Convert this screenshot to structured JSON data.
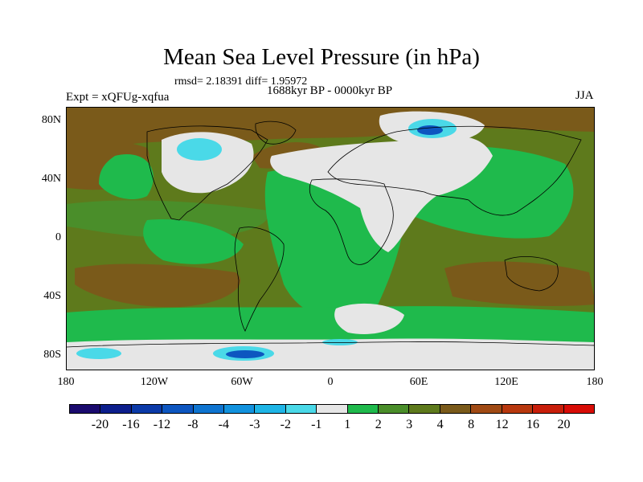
{
  "title": "Mean Sea Level Pressure (in hPa)",
  "stats": "rmsd= 2.18391 diff= 1.95972",
  "period": "1688kyr BP - 0000kyr BP",
  "experiment": "Expt = xQFUg-xqfua",
  "season": "JJA",
  "lat_labels": [
    "80N",
    "40N",
    "0",
    "40S",
    "80S"
  ],
  "lon_labels": [
    "180",
    "120W",
    "60W",
    "0",
    "60E",
    "120E",
    "180"
  ],
  "colorbar": {
    "labels": [
      "-20",
      "-16",
      "-12",
      "-8",
      "-4",
      "-3",
      "-2",
      "-1",
      "1",
      "2",
      "3",
      "4",
      "8",
      "12",
      "16",
      "20"
    ],
    "colors": [
      "#1a0a6e",
      "#0c1e8c",
      "#0b3aa8",
      "#0d56c0",
      "#0e74d0",
      "#1292de",
      "#1eb5e6",
      "#4ad9e8",
      "#e6e6e6",
      "#1fba4c",
      "#4a8e2a",
      "#5e7a1c",
      "#7a5a1a",
      "#a04a14",
      "#b8380e",
      "#c81e0a",
      "#d80c06"
    ]
  },
  "map_colors": {
    "background": "#5e7a1c",
    "band": "#4a8e2a",
    "green": "#1fba4c",
    "white": "#e6e6e6",
    "cyan": "#4ad9e8",
    "blue": "#0e74d0",
    "dark_blue": "#0d56c0",
    "brown": "#7a5a1a"
  }
}
